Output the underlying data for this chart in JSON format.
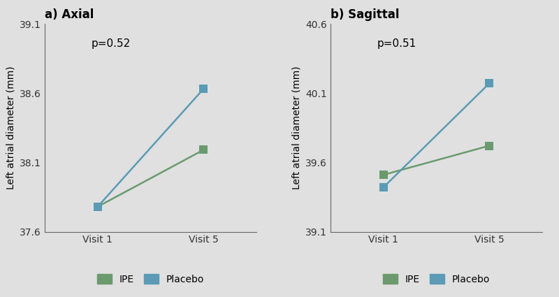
{
  "axial": {
    "title": "a) Axial",
    "ylabel": "Left atrial diameter (mm)",
    "pvalue": "p=0.52",
    "ipe": [
      37.78,
      38.19
    ],
    "placebo": [
      37.78,
      38.63
    ],
    "ylim": [
      37.6,
      39.1
    ],
    "yticks": [
      37.6,
      38.1,
      38.6,
      39.1
    ]
  },
  "sagittal": {
    "title": "b) Sagittal",
    "ylabel": "Left atrial diameter (mm)",
    "pvalue": "p=0.51",
    "ipe": [
      39.51,
      39.72
    ],
    "placebo": [
      39.42,
      40.17
    ],
    "ylim": [
      39.1,
      40.6
    ],
    "yticks": [
      39.1,
      39.6,
      40.1,
      40.6
    ]
  },
  "xticklabels": [
    "Visit 1",
    "Visit 5"
  ],
  "ipe_color": "#6a9a6e",
  "placebo_color": "#5b9bb5",
  "background_color": "#e0e0e0",
  "line_width": 1.8,
  "marker_size": 8,
  "marker_style": "s",
  "legend_labels": [
    "IPE",
    "Placebo"
  ],
  "title_fontsize": 12,
  "label_fontsize": 10,
  "tick_fontsize": 10,
  "pvalue_fontsize": 11
}
